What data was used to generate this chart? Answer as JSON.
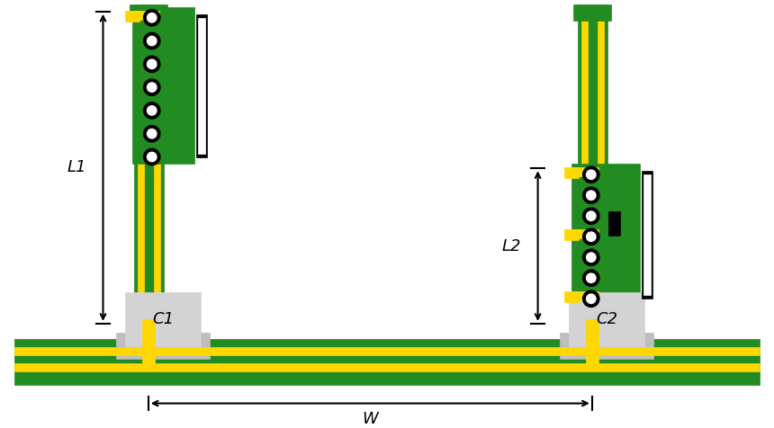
{
  "bg_color": "#ffffff",
  "GREEN": "#228B22",
  "YELLOW": "#FFD700",
  "LGRAY": "#D3D3D3",
  "MGRAY": "#BEBEBE",
  "BLACK": "#000000",
  "WHITE": "#FFFFFF",
  "figsize": [
    8.6,
    4.76
  ],
  "dpi": 100,
  "W_label": "W",
  "L1_label": "L1",
  "L2_label": "L2",
  "C1_label": "C1",
  "C2_label": "C2"
}
